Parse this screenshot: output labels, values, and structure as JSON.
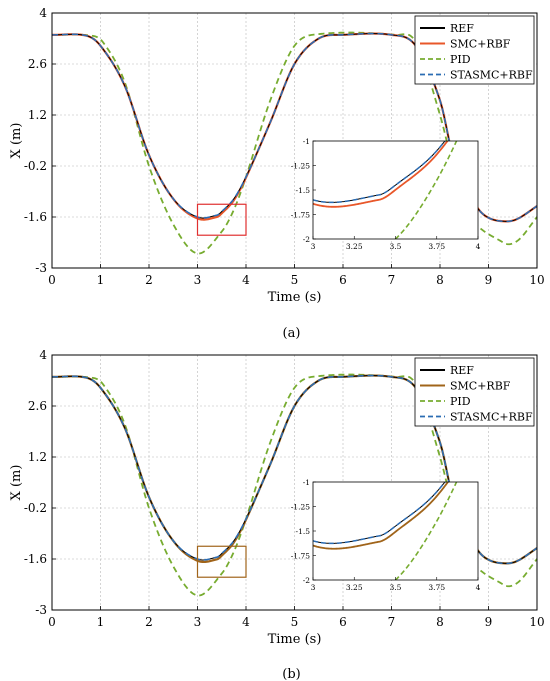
{
  "chart_data": [
    {
      "panel_label": "(a)",
      "type": "line",
      "xlabel": "Time (s)",
      "ylabel": "X (m)",
      "xlim": [
        0,
        10
      ],
      "ylim": [
        -3,
        4
      ],
      "xticks": [
        "0",
        "1",
        "2",
        "3",
        "4",
        "5",
        "6",
        "7",
        "8",
        "9",
        "10"
      ],
      "yticks": [
        "-3",
        "-1.6",
        "-0.2",
        "1.2",
        "2.6",
        "4"
      ],
      "grid": true,
      "legend_placement": "top-right",
      "series": [
        {
          "name": "REF",
          "color": "#000000",
          "dash": "solid"
        },
        {
          "name": "SMC+RBF",
          "color": "#e8572a",
          "dash": "solid"
        },
        {
          "name": "PID",
          "color": "#77ac30",
          "dash": "dashed"
        },
        {
          "name": "STASMC+RBF",
          "color": "#2b6cb3",
          "dash": "dashed"
        }
      ],
      "inset": {
        "xlim": [
          3,
          4
        ],
        "ylim": [
          -2,
          -1
        ],
        "xticks": [
          "3",
          "3.25",
          "3.5",
          "3.75",
          "4"
        ],
        "yticks": [
          "-2",
          "-1.75",
          "-1.5",
          "-1.25",
          "-1"
        ],
        "smc_offset": -0.05
      },
      "zoom_box": {
        "x": [
          3.0,
          4.0
        ],
        "y": [
          -2.1,
          -1.25
        ],
        "color": "#e03030"
      }
    },
    {
      "panel_label": "(b)",
      "type": "line",
      "xlabel": "Time (s)",
      "ylabel": "X (m)",
      "xlim": [
        0,
        10
      ],
      "ylim": [
        -3,
        4
      ],
      "xticks": [
        "0",
        "1",
        "2",
        "3",
        "4",
        "5",
        "6",
        "7",
        "8",
        "9",
        "10"
      ],
      "yticks": [
        "-3",
        "-1.6",
        "-0.2",
        "1.2",
        "2.6",
        "4"
      ],
      "grid": true,
      "legend_placement": "top-right",
      "series": [
        {
          "name": "REF",
          "color": "#000000",
          "dash": "solid"
        },
        {
          "name": "SMC+RBF",
          "color": "#a0641a",
          "dash": "solid"
        },
        {
          "name": "PID",
          "color": "#77ac30",
          "dash": "dashed"
        },
        {
          "name": "STASMC+RBF",
          "color": "#2b6cb3",
          "dash": "dashed"
        }
      ],
      "inset": {
        "xlim": [
          3,
          4
        ],
        "ylim": [
          -2,
          -1
        ],
        "xticks": [
          "3",
          "3.25",
          "3.5",
          "3.75",
          "4"
        ],
        "yticks": [
          "-2",
          "-1.75",
          "-1.5",
          "-1.25",
          "-1"
        ],
        "smc_offset": -0.06
      },
      "zoom_box": {
        "x": [
          3.0,
          4.0
        ],
        "y": [
          -2.1,
          -1.25
        ],
        "color": "#a0641a"
      }
    }
  ],
  "signal": {
    "ref": [
      [
        0,
        3.4
      ],
      [
        0.7,
        3.38
      ],
      [
        1,
        3.1
      ],
      [
        1.5,
        2.0
      ],
      [
        2,
        0.1
      ],
      [
        2.5,
        -1.1
      ],
      [
        3,
        -1.6
      ],
      [
        3.4,
        -1.55
      ],
      [
        3.5,
        -1.45
      ],
      [
        3.75,
        -1.1
      ],
      [
        4,
        -0.5
      ],
      [
        4.5,
        1.0
      ],
      [
        5,
        2.6
      ],
      [
        5.5,
        3.3
      ],
      [
        6,
        3.4
      ],
      [
        7,
        3.4
      ],
      [
        7.5,
        3.1
      ],
      [
        8,
        1.6
      ],
      [
        8.3,
        -0.1
      ],
      [
        8.75,
        -1.3
      ],
      [
        9.0,
        -1.62
      ],
      [
        9.35,
        -1.72
      ],
      [
        9.6,
        -1.65
      ],
      [
        10,
        -1.3
      ]
    ],
    "pid": [
      [
        0,
        3.4
      ],
      [
        0.8,
        3.38
      ],
      [
        1.05,
        3.2
      ],
      [
        1.5,
        2.1
      ],
      [
        2,
        -0.2
      ],
      [
        2.5,
        -1.8
      ],
      [
        3,
        -2.6
      ],
      [
        3.5,
        -2.0
      ],
      [
        3.75,
        -1.4
      ],
      [
        4,
        -0.5
      ],
      [
        4.5,
        1.6
      ],
      [
        5,
        3.1
      ],
      [
        5.5,
        3.42
      ],
      [
        7.1,
        3.4
      ],
      [
        7.5,
        3.2
      ],
      [
        8,
        1.2
      ],
      [
        8.5,
        -1.3
      ],
      [
        9.3,
        -2.3
      ],
      [
        9.6,
        -2.25
      ],
      [
        10,
        -1.6
      ]
    ]
  }
}
